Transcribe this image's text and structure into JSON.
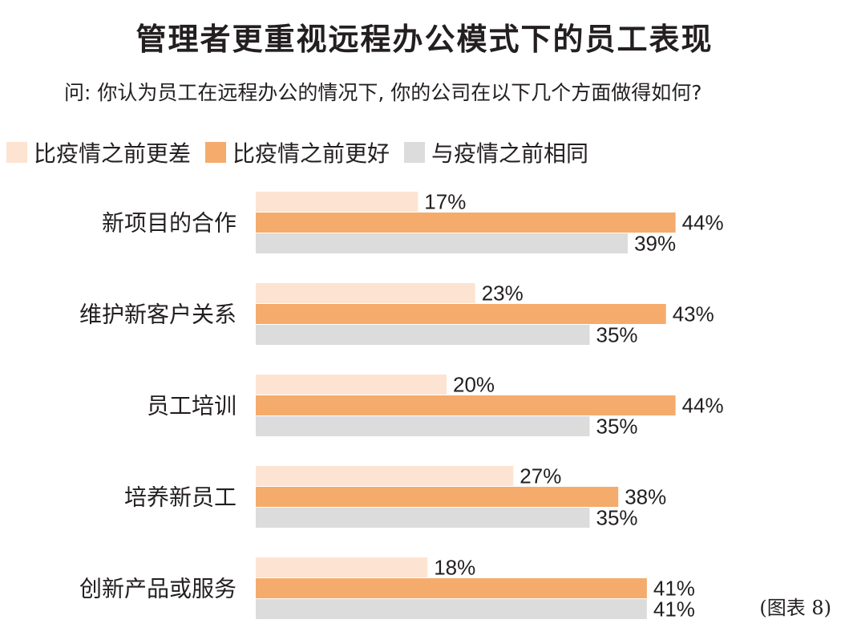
{
  "title": "管理者更重视远程办公模式下的员工表现",
  "question": "问: 你认为员工在远程办公的情况下, 你的公司在以下几个方面做得如何?",
  "note": "(图表 8)",
  "colors": {
    "worse": "#fde3d2",
    "better": "#f5ab6c",
    "same": "#dcdcdc"
  },
  "legend": [
    {
      "label": "比疫情之前更差",
      "color": "#fde3d2"
    },
    {
      "label": "比疫情之前更好",
      "color": "#f5ab6c"
    },
    {
      "label": "与疫情之前相同",
      "color": "#dcdcdc"
    }
  ],
  "chart_data": {
    "type": "bar",
    "orientation": "horizontal",
    "title": "管理者更重视远程办公模式下的员工表现",
    "categories": [
      "新项目的合作",
      "维护新客户关系",
      "员工培训",
      "培养新员工",
      "创新产品或服务"
    ],
    "series": [
      {
        "name": "比疫情之前更差",
        "values": [
          17,
          23,
          20,
          27,
          18
        ],
        "labels": [
          "17%",
          "23%",
          "20%",
          "27%",
          "18%"
        ],
        "color": "#fde3d2"
      },
      {
        "name": "比疫情之前更好",
        "values": [
          44,
          43,
          44,
          38,
          41
        ],
        "labels": [
          "44%",
          "43%",
          "44%",
          "38%",
          "41%"
        ],
        "color": "#f5ab6c"
      },
      {
        "name": "与疫情之前相同",
        "values": [
          39,
          35,
          35,
          35,
          41
        ],
        "labels": [
          "39%",
          "35%",
          "35%",
          "35%",
          "41%"
        ],
        "color": "#dcdcdc"
      }
    ],
    "unit": "%",
    "grid": false,
    "legend_position": "top-left"
  }
}
